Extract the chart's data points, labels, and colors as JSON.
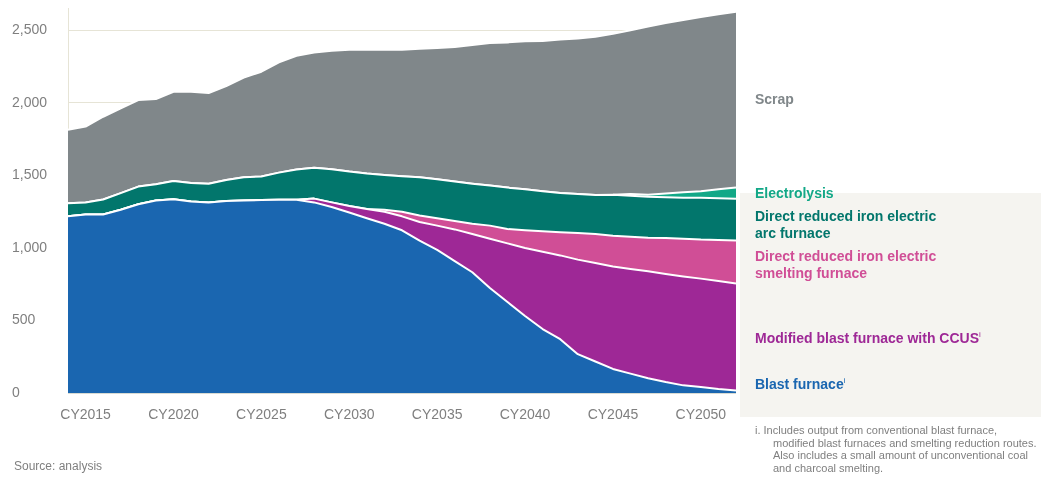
{
  "chart_data": {
    "type": "area",
    "stacked": true,
    "categories": [
      null,
      "CY2015",
      null,
      null,
      null,
      null,
      "CY2020",
      null,
      null,
      null,
      null,
      "CY2025",
      null,
      null,
      null,
      null,
      "CY2030",
      null,
      null,
      null,
      null,
      "CY2035",
      null,
      null,
      null,
      null,
      "CY2040",
      null,
      null,
      null,
      null,
      "CY2045",
      null,
      null,
      null,
      null,
      "CY2050",
      null,
      null
    ],
    "series": [
      {
        "name": "Blast furnace$^{i}$",
        "color": "#1a66b0",
        "values": [
          1218,
          1231,
          1231,
          1263,
          1301,
          1327,
          1336,
          1320,
          1314,
          1324,
          1327,
          1330,
          1333,
          1333,
          1314,
          1282,
          1244,
          1205,
          1167,
          1122,
          1051,
          987,
          910,
          833,
          724,
          628,
          532,
          442,
          372,
          269,
          218,
          167,
          135,
          103,
          77,
          54,
          42,
          29,
          19
        ]
      },
      {
        "name": "Modified blast furnace with CCUS$^{i}$",
        "color": "#9e2896",
        "values": [
          0,
          0,
          0,
          0,
          0,
          0,
          0,
          0,
          0,
          0,
          0,
          0,
          0,
          0,
          26,
          32,
          45,
          64,
          83,
          96,
          128,
          167,
          218,
          263,
          340,
          404,
          468,
          532,
          577,
          651,
          679,
          705,
          721,
          737,
          744,
          750,
          747,
          744,
          737
        ]
      },
      {
        "name": "Direct reduced iron electric smelting furnace",
        "color": "#d04e96",
        "values": [
          0,
          0,
          0,
          0,
          0,
          0,
          0,
          0,
          0,
          0,
          0,
          0,
          0,
          0,
          0,
          0,
          0,
          0,
          13,
          32,
          45,
          51,
          58,
          71,
          90,
          99,
          122,
          141,
          160,
          183,
          199,
          212,
          221,
          231,
          247,
          260,
          269,
          282,
          295
        ]
      },
      {
        "name": "Direct reduced iron electric arc furnace",
        "color": "#02766c",
        "values": [
          90,
          83,
          103,
          115,
          122,
          112,
          125,
          128,
          128,
          144,
          160,
          163,
          186,
          208,
          212,
          228,
          237,
          244,
          240,
          244,
          263,
          269,
          272,
          276,
          276,
          285,
          282,
          276,
          269,
          269,
          269,
          282,
          282,
          282,
          282,
          282,
          288,
          288,
          288
        ]
      },
      {
        "name": "Electrolysis",
        "color": "#12a887",
        "values": [
          0,
          0,
          0,
          0,
          0,
          0,
          0,
          0,
          0,
          0,
          0,
          0,
          0,
          0,
          0,
          0,
          0,
          0,
          0,
          0,
          0,
          0,
          0,
          0,
          0,
          0,
          0,
          0,
          0,
          0,
          0,
          0,
          13,
          13,
          26,
          38,
          45,
          61,
          77
        ]
      },
      {
        "name": "Scrap",
        "color": "#80878a",
        "values": [
          506,
          522,
          570,
          583,
          596,
          587,
          615,
          628,
          625,
          647,
          686,
          721,
          760,
          782,
          795,
          817,
          840,
          853,
          862,
          872,
          885,
          904,
          926,
          955,
          981,
          1000,
          1019,
          1035,
          1058,
          1070,
          1090,
          1109,
          1128,
          1160,
          1173,
          1186,
          1199,
          1205,
          1211
        ]
      }
    ],
    "ylim": [
      0,
      2650
    ],
    "yticks": [
      {
        "value": 0,
        "label": "0"
      },
      {
        "value": 500,
        "label": "500"
      },
      {
        "value": 1000,
        "label": "1,000"
      },
      {
        "value": 1500,
        "label": "1,500"
      },
      {
        "value": 2000,
        "label": "2,000"
      },
      {
        "value": 2500,
        "label": "2,500"
      }
    ],
    "grid": "y",
    "legend": "right",
    "annotations": [
      "Source: analysis",
      "i. Includes output from conventional blast furnace, modified blast furnaces and smelting reduction routes. Also includes a small amount of unconventional coal and charcoal smelting."
    ]
  }
}
